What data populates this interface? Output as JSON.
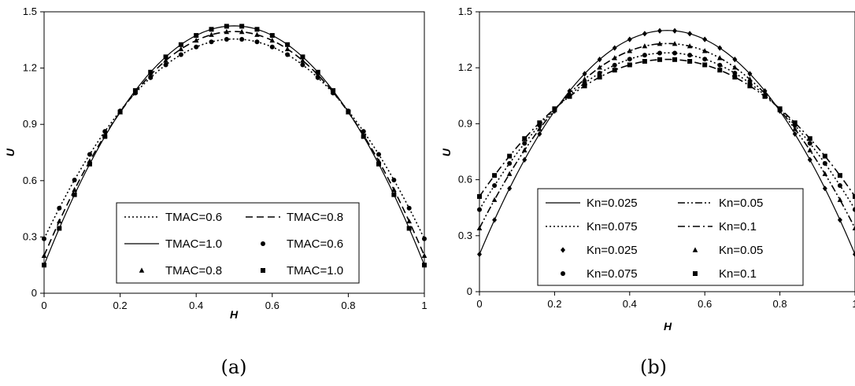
{
  "chart_data": [
    {
      "type": "line",
      "caption": "(a)",
      "xlabel": "H",
      "ylabel": "U",
      "xlim": [
        0,
        1
      ],
      "ylim": [
        0,
        1.5
      ],
      "xticks": [
        "0",
        "0.2",
        "0.4",
        "0.6",
        "0.8",
        "1"
      ],
      "yticks": [
        "0",
        "0.3",
        "0.6",
        "0.9",
        "1.2",
        "1.5"
      ],
      "legend_position": "bottom-center",
      "grid": false,
      "series": [
        {
          "name": "TMAC=0.6",
          "style": "dotted",
          "family": "parabola",
          "wall": 0.29,
          "center": 1.355
        },
        {
          "name": "TMAC=0.8",
          "style": "dashed",
          "family": "parabola",
          "wall": 0.2,
          "center": 1.395
        },
        {
          "name": "TMAC=1.0",
          "style": "solid",
          "family": "parabola",
          "wall": 0.15,
          "center": 1.425
        },
        {
          "name": "TMAC=0.6",
          "style": "marker-circle",
          "family": "parabola",
          "wall": 0.29,
          "center": 1.355
        },
        {
          "name": "TMAC=0.8",
          "style": "marker-triangle",
          "family": "parabola",
          "wall": 0.2,
          "center": 1.395
        },
        {
          "name": "TMAC=1.0",
          "style": "marker-square",
          "family": "parabola",
          "wall": 0.15,
          "center": 1.425
        }
      ],
      "legend_layout": [
        [
          "TMAC=0.6",
          "TMAC=0.8"
        ],
        [
          "TMAC=1.0",
          "TMAC=0.6"
        ],
        [
          "TMAC=0.8",
          "TMAC=1.0"
        ]
      ]
    },
    {
      "type": "line",
      "caption": "(b)",
      "xlabel": "H",
      "ylabel": "U",
      "xlim": [
        0,
        1
      ],
      "ylim": [
        0,
        1.5
      ],
      "xticks": [
        "0",
        "0.2",
        "0.4",
        "0.6",
        "0.8",
        "1"
      ],
      "yticks": [
        "0",
        "0.3",
        "0.6",
        "0.9",
        "1.2",
        "1.5"
      ],
      "legend_position": "bottom-center",
      "grid": false,
      "series": [
        {
          "name": "Kn=0.025",
          "style": "solid",
          "wall": 0.2,
          "center": 1.4
        },
        {
          "name": "Kn=0.05",
          "style": "dash-dot-dot",
          "wall": 0.34,
          "center": 1.33
        },
        {
          "name": "Kn=0.075",
          "style": "dotted",
          "wall": 0.44,
          "center": 1.28
        },
        {
          "name": "Kn=0.1",
          "style": "dash-dot",
          "wall": 0.51,
          "center": 1.245
        },
        {
          "name": "Kn=0.025",
          "style": "marker-diamond",
          "wall": 0.2,
          "center": 1.4
        },
        {
          "name": "Kn=0.05",
          "style": "marker-triangle",
          "wall": 0.34,
          "center": 1.33
        },
        {
          "name": "Kn=0.075",
          "style": "marker-circle",
          "wall": 0.44,
          "center": 1.28
        },
        {
          "name": "Kn=0.1",
          "style": "marker-square",
          "wall": 0.51,
          "center": 1.245
        }
      ],
      "legend_layout": [
        [
          "Kn=0.025",
          "Kn=0.05"
        ],
        [
          "Kn=0.075",
          "Kn=0.1"
        ],
        [
          "Kn=0.025",
          "Kn=0.05"
        ],
        [
          "Kn=0.075",
          "Kn=0.1"
        ]
      ]
    }
  ]
}
